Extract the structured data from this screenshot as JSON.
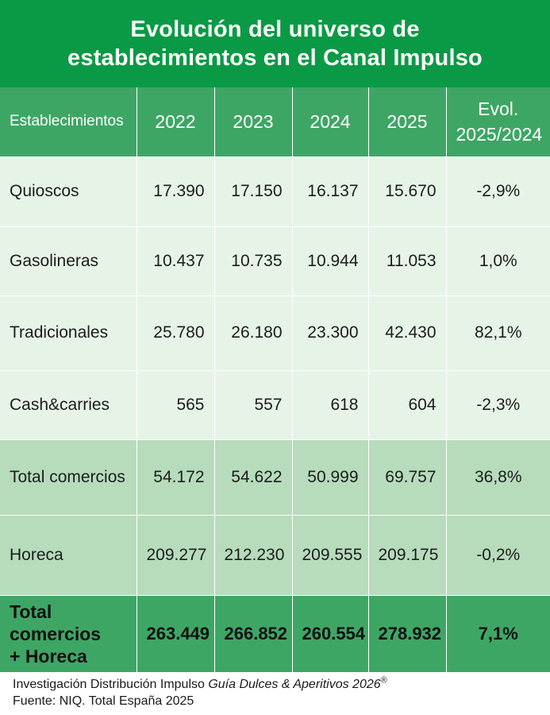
{
  "title": {
    "line1": "Evolución del universo de",
    "line2": "establecimientos en el Canal Impulso"
  },
  "table": {
    "columns": [
      "Establecimientos",
      "2022",
      "2023",
      "2024",
      "2025"
    ],
    "evol_header": {
      "line1": "Evol.",
      "line2": "2025/2024"
    },
    "rows": [
      {
        "label": "Quioscos",
        "v2022": "17.390",
        "v2023": "17.150",
        "v2024": "16.137",
        "v2025": "15.670",
        "evol": "-2,9%"
      },
      {
        "label": "Gasolineras",
        "v2022": "10.437",
        "v2023": "10.735",
        "v2024": "10.944",
        "v2025": "11.053",
        "evol": "1,0%"
      },
      {
        "label": "Tradicionales",
        "v2022": "25.780",
        "v2023": "26.180",
        "v2024": "23.300",
        "v2025": "42.430",
        "evol": "82,1%"
      },
      {
        "label": "Cash&carries",
        "v2022": "565",
        "v2023": "557",
        "v2024": "618",
        "v2025": "604",
        "evol": "-2,3%"
      },
      {
        "label": "Total comercios",
        "v2022": "54.172",
        "v2023": "54.622",
        "v2024": "50.999",
        "v2025": "69.757",
        "evol": "36,8%"
      },
      {
        "label": "Horeca",
        "v2022": "209.277",
        "v2023": "212.230",
        "v2024": "209.555",
        "v2025": "209.175",
        "evol": "-0,2%"
      }
    ],
    "total": {
      "label_line1": "Total comercios",
      "label_line2": "+ Horeca",
      "v2022": "263.449",
      "v2023": "266.852",
      "v2024": "260.554",
      "v2025": "278.932",
      "evol": "7,1%"
    }
  },
  "footer": {
    "line1_prefix": "Investigación Distribución Impulso ",
    "line1_italic": "Guía Dulces & Aperitivos 2026",
    "registered": "®",
    "line2": "Fuente: NIQ. Total España 2025"
  },
  "colors": {
    "title_band": "#0a9a45",
    "header_row": "#3ea665",
    "light_rows": "#e6f4e7",
    "mid_rows": "#b6dcbc",
    "total_row": "#3ea665"
  }
}
